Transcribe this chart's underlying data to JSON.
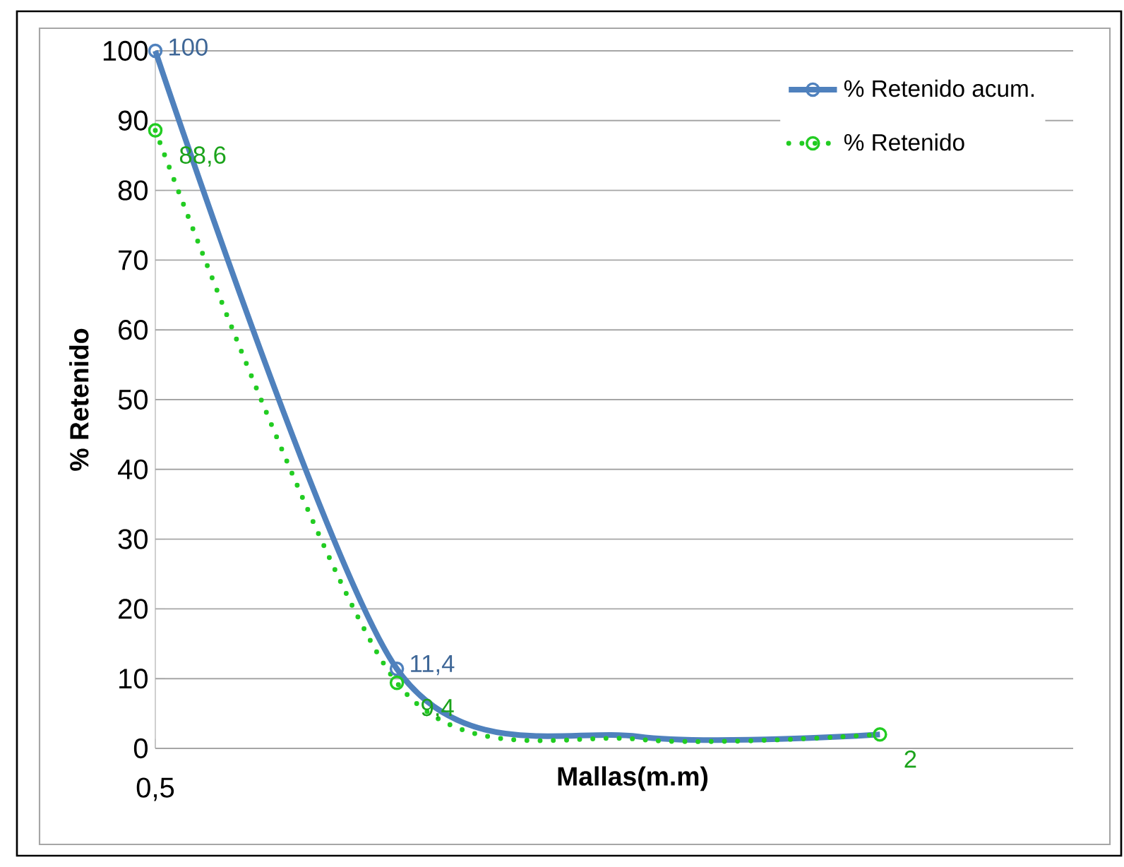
{
  "chart_data": {
    "type": "line",
    "xlabel": "Mallas(m.m)",
    "ylabel": "% Retenido",
    "categories": [
      "0,5",
      null,
      null,
      null
    ],
    "series": [
      {
        "name": "% Retenido acum.",
        "color": "#4f81bd",
        "line_style": "solid",
        "values": [
          100,
          11.4,
          1.7,
          2
        ],
        "value_labels": [
          "100",
          "11,4",
          null,
          null
        ]
      },
      {
        "name": "% Retenido",
        "color": "#22cc22",
        "line_style": "dotted",
        "values": [
          88.6,
          9.4,
          1.3,
          2
        ],
        "value_labels": [
          "88,6",
          "9,4",
          null,
          "2"
        ]
      }
    ],
    "ylim": [
      0,
      100
    ],
    "yticks": [
      0,
      10,
      20,
      30,
      40,
      50,
      60,
      70,
      80,
      90,
      100
    ],
    "grid": "y",
    "legend": "top right",
    "marker": "circle"
  }
}
